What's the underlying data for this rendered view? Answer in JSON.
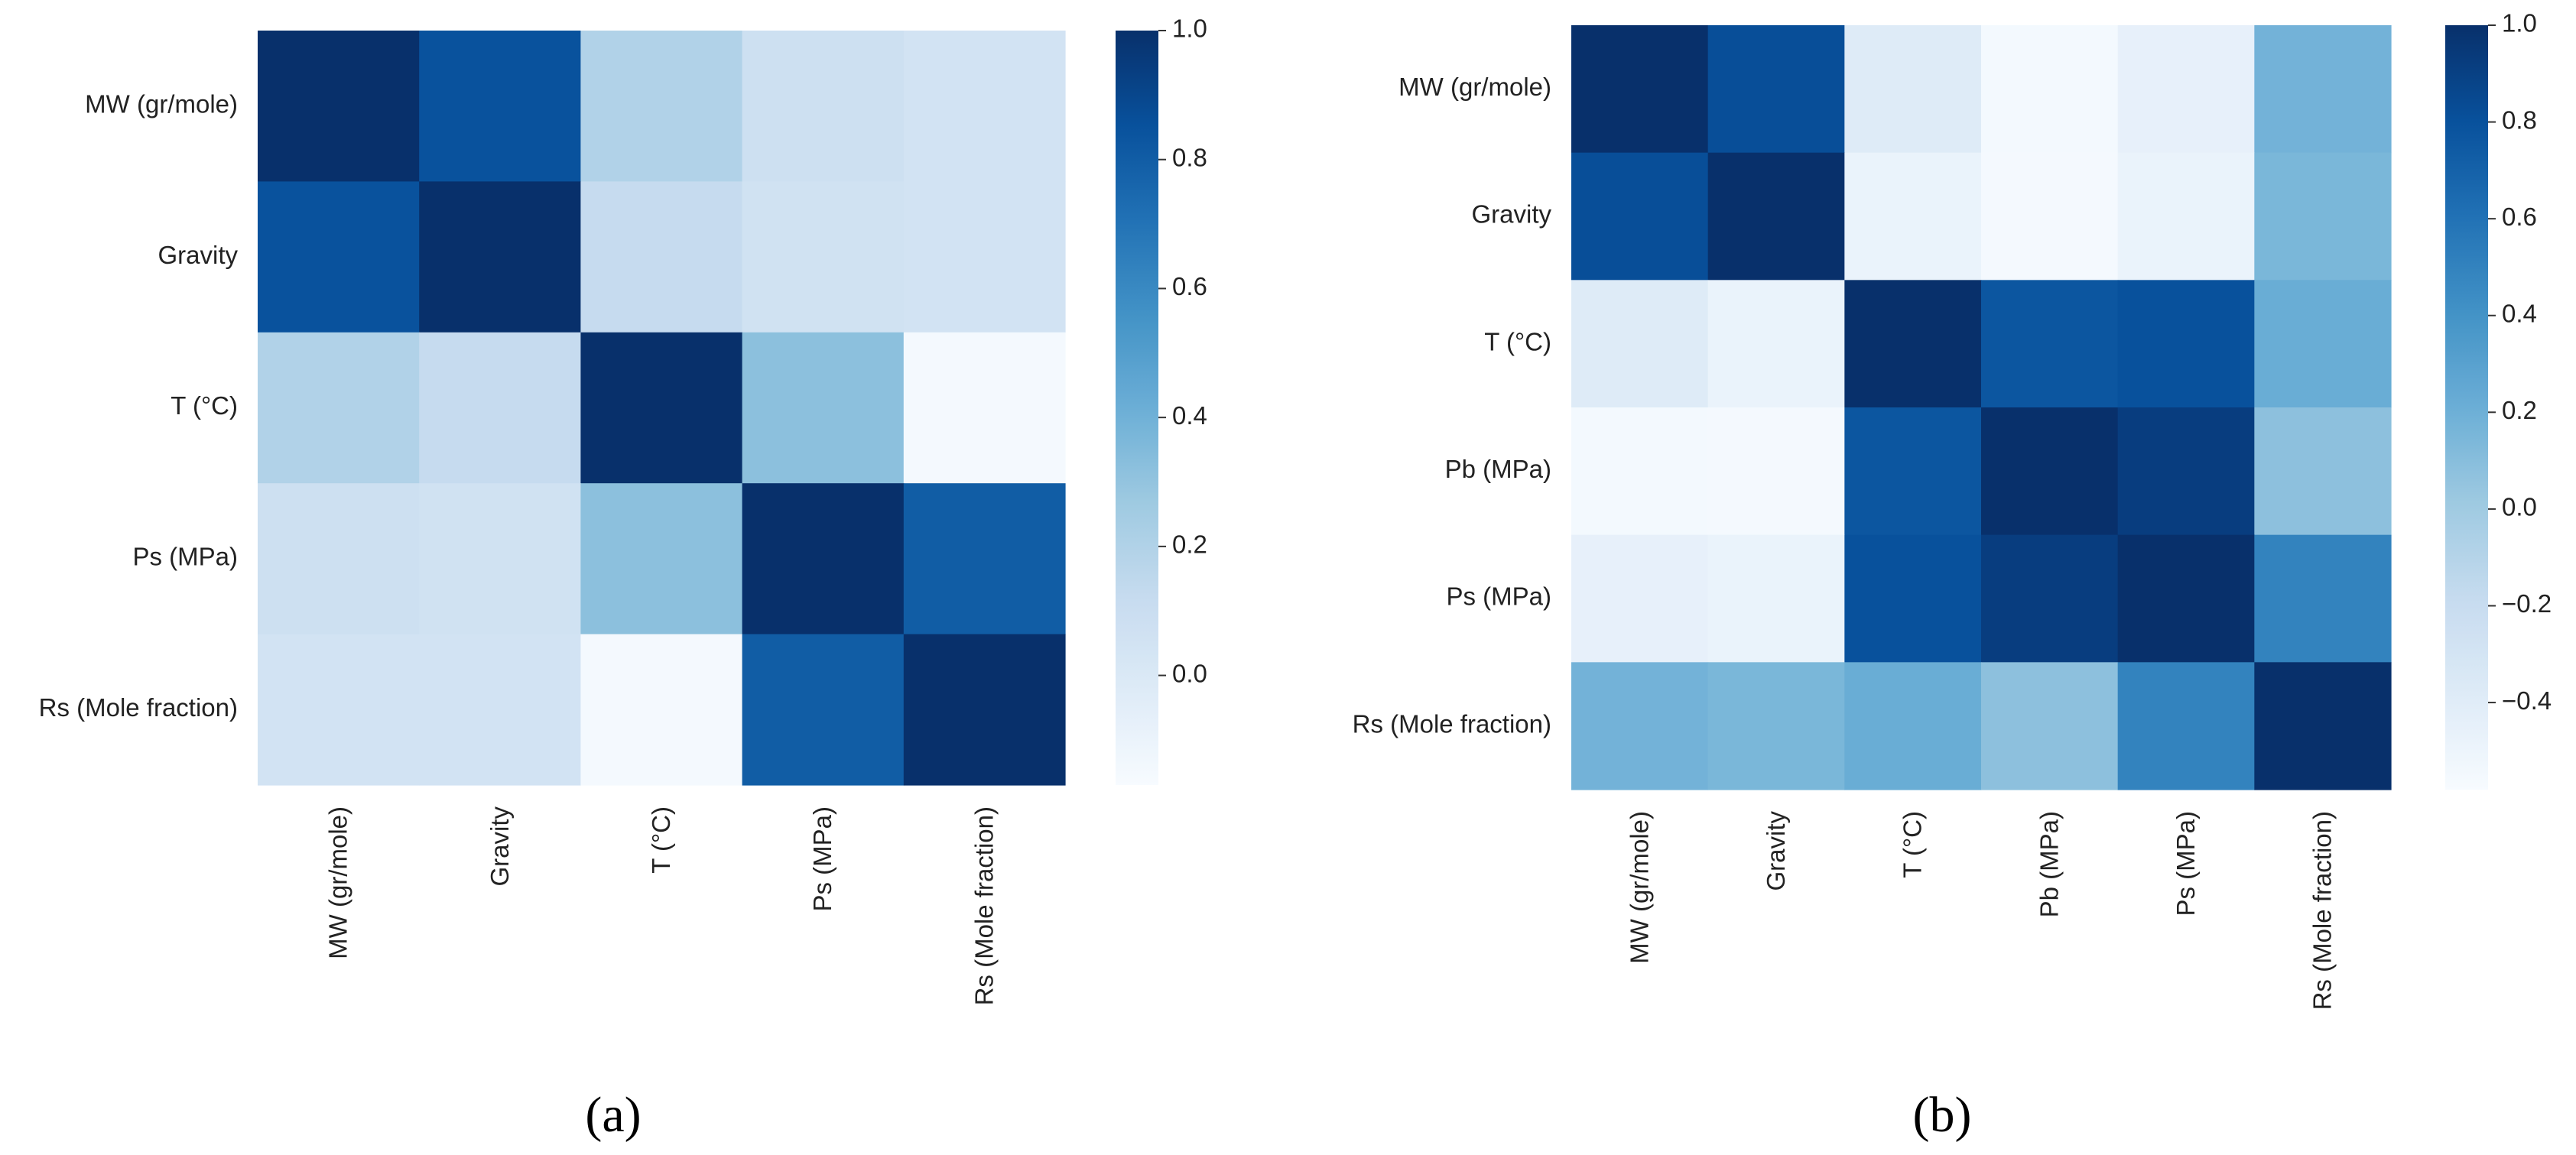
{
  "chart_data": [
    {
      "type": "heatmap",
      "panel_caption": "(a)",
      "labels": [
        "MW (gr/mole)",
        "Gravity",
        "T (°C)",
        "Ps (MPa)",
        "Rs (Mole fraction)"
      ],
      "matrix": [
        [
          1.0,
          0.85,
          0.2,
          0.08,
          0.05
        ],
        [
          0.85,
          1.0,
          0.12,
          0.06,
          0.05
        ],
        [
          0.2,
          0.12,
          1.0,
          0.32,
          -0.15
        ],
        [
          0.08,
          0.06,
          0.32,
          1.0,
          0.8
        ],
        [
          0.05,
          0.05,
          -0.15,
          0.8,
          1.0
        ]
      ],
      "colorbar": {
        "min": -0.17,
        "max": 1.0,
        "ticks": [
          1.0,
          0.8,
          0.6,
          0.4,
          0.2,
          0.0
        ],
        "tick_labels": [
          "1.0",
          "0.8",
          "0.6",
          "0.4",
          "0.2",
          "0.0"
        ]
      },
      "colormap": "Blues",
      "colors": {
        "low": "#f7fbff",
        "high": "#08306b"
      }
    },
    {
      "type": "heatmap",
      "panel_caption": "(b)",
      "labels": [
        "MW (gr/mole)",
        "Gravity",
        "T (°C)",
        "Pb (MPa)",
        "Ps (MPa)",
        "Rs (Mole fraction)"
      ],
      "matrix": [
        [
          1.0,
          0.82,
          -0.38,
          -0.55,
          -0.45,
          0.18
        ],
        [
          0.82,
          1.0,
          -0.48,
          -0.56,
          -0.48,
          0.15
        ],
        [
          -0.38,
          -0.48,
          1.0,
          0.77,
          0.8,
          0.22
        ],
        [
          -0.55,
          -0.56,
          0.77,
          1.0,
          0.92,
          0.08
        ],
        [
          -0.45,
          -0.48,
          0.8,
          0.92,
          1.0,
          0.5
        ],
        [
          0.18,
          0.15,
          0.22,
          0.08,
          0.5,
          1.0
        ]
      ],
      "colorbar": {
        "min": -0.58,
        "max": 1.0,
        "ticks": [
          1.0,
          0.8,
          0.6,
          0.4,
          0.2,
          0.0,
          -0.2,
          -0.4
        ],
        "tick_labels": [
          "1.0",
          "0.8",
          "0.6",
          "0.4",
          "0.2",
          "0.0",
          "−0.2",
          "−0.4"
        ]
      },
      "colormap": "Blues",
      "colors": {
        "low": "#f7fbff",
        "high": "#08306b"
      }
    }
  ]
}
